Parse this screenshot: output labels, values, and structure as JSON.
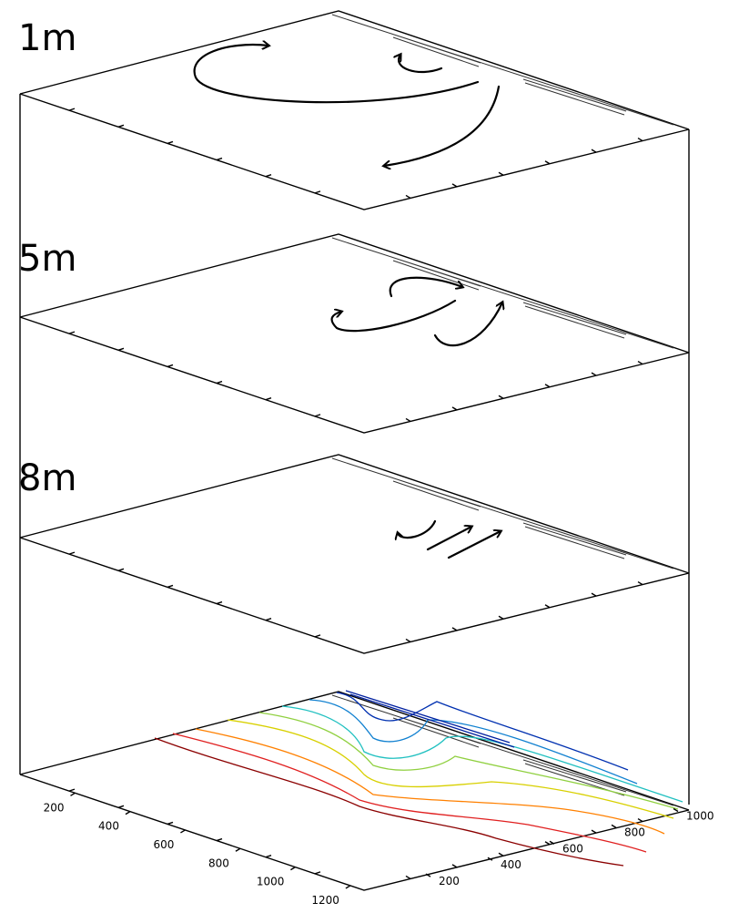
{
  "layers": [
    {
      "label": "1m"
    },
    {
      "label": "5m"
    },
    {
      "label": "8m"
    }
  ],
  "x_axis": {
    "ticks": [
      200,
      400,
      600,
      800,
      1000,
      1200
    ]
  },
  "y_axis": {
    "ticks": [
      200,
      400,
      600,
      800,
      1000
    ]
  }
}
